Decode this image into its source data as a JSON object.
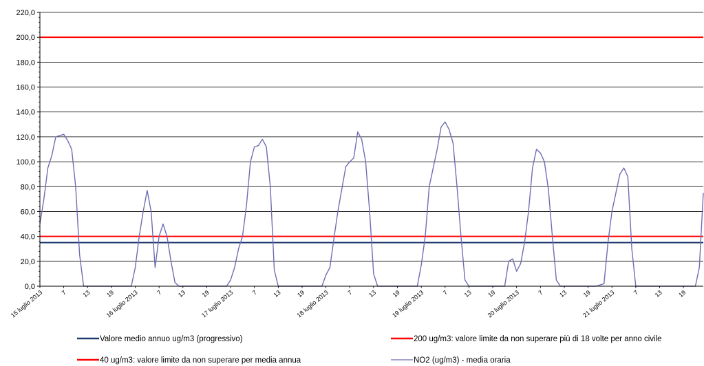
{
  "chart_data": {
    "type": "line",
    "title": "",
    "xlabel": "",
    "ylabel": "",
    "ylim": [
      0,
      220
    ],
    "yticks": [
      "0,0",
      "20,0",
      "40,0",
      "60,0",
      "80,0",
      "100,0",
      "120,0",
      "140,0",
      "160,0",
      "180,0",
      "200,0",
      "220,0"
    ],
    "x_tick_labels": [
      {
        "hour": 0,
        "label": "15 luglio 2013"
      },
      {
        "hour": 6,
        "label": "7"
      },
      {
        "hour": 12,
        "label": "13"
      },
      {
        "hour": 18,
        "label": "19"
      },
      {
        "hour": 24,
        "label": "16 luglio 2013"
      },
      {
        "hour": 30,
        "label": "7"
      },
      {
        "hour": 36,
        "label": "13"
      },
      {
        "hour": 42,
        "label": "19"
      },
      {
        "hour": 48,
        "label": "17 luglio 2013"
      },
      {
        "hour": 54,
        "label": "7"
      },
      {
        "hour": 60,
        "label": "13"
      },
      {
        "hour": 66,
        "label": "19"
      },
      {
        "hour": 72,
        "label": "18 luglio 2013"
      },
      {
        "hour": 78,
        "label": "7"
      },
      {
        "hour": 84,
        "label": "13"
      },
      {
        "hour": 90,
        "label": "19"
      },
      {
        "hour": 96,
        "label": "19 luglio 2013"
      },
      {
        "hour": 102,
        "label": "7"
      },
      {
        "hour": 108,
        "label": "13"
      },
      {
        "hour": 114,
        "label": "19"
      },
      {
        "hour": 120,
        "label": "20 luglio 2013"
      },
      {
        "hour": 126,
        "label": "7"
      },
      {
        "hour": 132,
        "label": "13"
      },
      {
        "hour": 138,
        "label": "19"
      },
      {
        "hour": 144,
        "label": "21 luglio 2013"
      },
      {
        "hour": 150,
        "label": "7"
      },
      {
        "hour": 156,
        "label": "13"
      },
      {
        "hour": 162,
        "label": "19"
      }
    ],
    "grid": true,
    "reference_lines": [
      {
        "name": "200 ug/m3: valore limite da non superare più di 18 volte per anno civile",
        "value": 200,
        "color": "#ff0000"
      },
      {
        "name": "40 ug/m3: valore limite da non superare per media annua",
        "value": 40,
        "color": "#ff0000"
      },
      {
        "name": "Valore medio annuo ug/m3 (progressivo)",
        "value": 35,
        "color": "#1f3a6e"
      }
    ],
    "series": [
      {
        "name": "NO2 (ug/m3) - media oraria",
        "color": "#6e6eb4",
        "values": [
          50,
          70,
          95,
          105,
          120,
          121,
          122,
          117,
          110,
          80,
          25,
          0,
          0,
          0,
          0,
          0,
          0,
          0,
          0,
          0,
          0,
          0,
          0,
          0,
          15,
          40,
          60,
          77,
          60,
          15,
          40,
          50,
          40,
          20,
          3,
          0,
          0,
          0,
          0,
          0,
          0,
          0,
          0,
          0,
          0,
          0,
          0,
          0,
          5,
          15,
          30,
          40,
          65,
          100,
          112,
          113,
          118,
          112,
          80,
          13,
          0,
          0,
          0,
          0,
          0,
          0,
          0,
          0,
          0,
          0,
          0,
          0,
          9,
          15,
          38,
          60,
          78,
          96,
          100,
          103,
          124,
          118,
          100,
          60,
          10,
          0,
          0,
          0,
          0,
          0,
          0,
          0,
          0,
          0,
          0,
          0,
          17,
          40,
          80,
          95,
          110,
          128,
          132,
          126,
          115,
          80,
          40,
          5,
          0,
          0,
          0,
          0,
          0,
          0,
          0,
          0,
          0,
          0,
          20,
          22,
          12,
          18,
          35,
          60,
          95,
          110,
          107,
          100,
          78,
          40,
          5,
          0,
          0,
          0,
          0,
          0,
          0,
          0,
          0,
          0,
          0,
          1,
          2,
          35,
          60,
          75,
          90,
          95,
          88,
          30,
          0,
          0,
          0,
          0,
          0,
          0,
          0,
          0,
          0,
          0,
          0,
          0,
          0,
          0,
          0,
          0,
          15,
          75
        ]
      }
    ],
    "legend": {
      "placement": "bottom",
      "entries": [
        {
          "label": "Valore medio annuo ug/m3 (progressivo)",
          "color": "#1f3a6e"
        },
        {
          "label": "200 ug/m3: valore limite da non superare più di 18 volte per anno civile",
          "color": "#ff0000"
        },
        {
          "label": "40 ug/m3: valore limite da non superare per media annua",
          "color": "#ff0000"
        },
        {
          "label": "NO2 (ug/m3)  - media oraria",
          "color": "#6e6eb4"
        }
      ]
    }
  }
}
